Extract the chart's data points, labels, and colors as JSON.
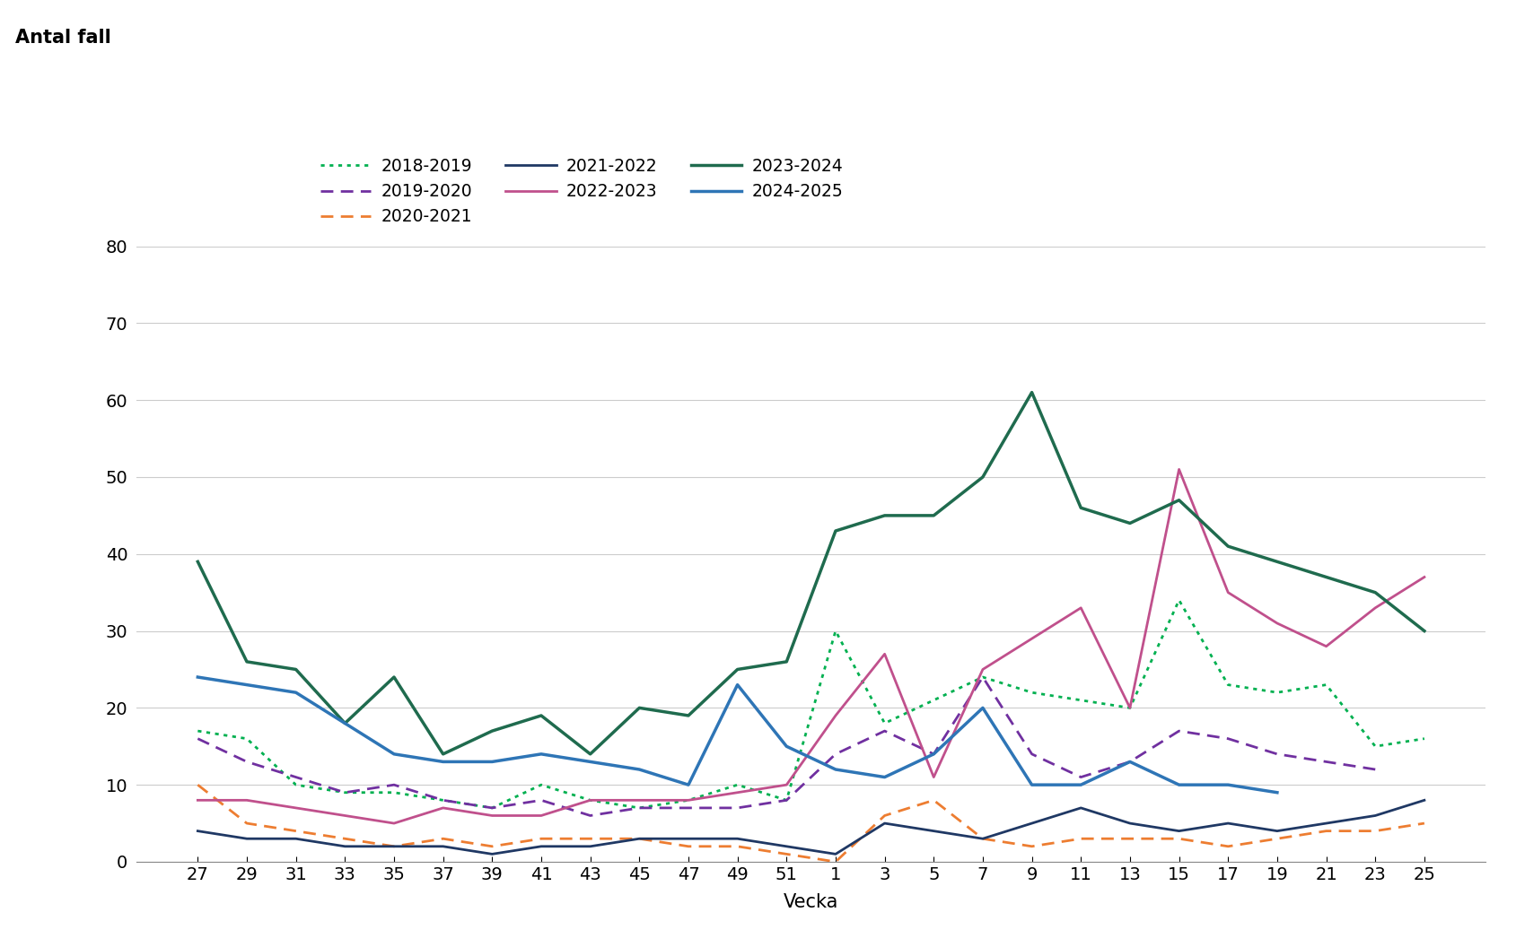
{
  "ylabel": "Antal fall",
  "xlabel": "Vecka",
  "ylim": [
    0,
    80
  ],
  "yticks": [
    0,
    10,
    20,
    30,
    40,
    50,
    60,
    70,
    80
  ],
  "xtick_labels": [
    "27",
    "29",
    "31",
    "33",
    "35",
    "37",
    "39",
    "41",
    "43",
    "45",
    "47",
    "49",
    "51",
    "1",
    "3",
    "5",
    "7",
    "9",
    "11",
    "13",
    "15",
    "17",
    "19",
    "21",
    "23",
    "25"
  ],
  "series": [
    {
      "label": "2018-2019",
      "color": "#00B050",
      "linestyle": "dotted",
      "linewidth": 2.0,
      "data": [
        17,
        16,
        10,
        9,
        9,
        8,
        7,
        10,
        8,
        7,
        8,
        10,
        8,
        30,
        18,
        21,
        24,
        22,
        21,
        20,
        34,
        23,
        22,
        23,
        15,
        16
      ]
    },
    {
      "label": "2019-2020",
      "color": "#7030A0",
      "linestyle": "dashed",
      "linewidth": 2.0,
      "data": [
        16,
        13,
        11,
        9,
        10,
        8,
        7,
        8,
        6,
        7,
        7,
        7,
        8,
        14,
        17,
        14,
        24,
        14,
        11,
        13,
        17,
        16,
        14,
        13,
        12,
        null
      ]
    },
    {
      "label": "2020-2021",
      "color": "#ED7D31",
      "linestyle": "dashed",
      "linewidth": 2.0,
      "data": [
        10,
        5,
        4,
        3,
        2,
        3,
        2,
        3,
        3,
        3,
        2,
        2,
        1,
        0,
        6,
        8,
        3,
        2,
        3,
        3,
        3,
        2,
        3,
        4,
        4,
        5
      ]
    },
    {
      "label": "2021-2022",
      "color": "#1F3864",
      "linestyle": "solid",
      "linewidth": 2.0,
      "data": [
        4,
        3,
        3,
        2,
        2,
        2,
        1,
        2,
        2,
        3,
        3,
        3,
        2,
        1,
        5,
        4,
        3,
        5,
        7,
        5,
        4,
        5,
        4,
        5,
        6,
        8
      ]
    },
    {
      "label": "2022-2023",
      "color": "#C0508C",
      "linestyle": "solid",
      "linewidth": 2.0,
      "data": [
        8,
        8,
        7,
        6,
        5,
        7,
        6,
        6,
        8,
        8,
        8,
        9,
        10,
        19,
        27,
        11,
        25,
        29,
        33,
        20,
        51,
        35,
        31,
        28,
        33,
        37
      ]
    },
    {
      "label": "2023-2024",
      "color": "#1F6B4E",
      "linestyle": "solid",
      "linewidth": 2.5,
      "data": [
        39,
        26,
        25,
        18,
        24,
        14,
        17,
        19,
        14,
        20,
        19,
        25,
        26,
        43,
        45,
        45,
        50,
        61,
        46,
        44,
        47,
        41,
        39,
        37,
        35,
        30
      ]
    },
    {
      "label": "2024-2025",
      "color": "#2E75B6",
      "linestyle": "solid",
      "linewidth": 2.5,
      "data": [
        24,
        23,
        22,
        18,
        14,
        13,
        13,
        14,
        13,
        12,
        10,
        23,
        15,
        12,
        11,
        14,
        20,
        10,
        10,
        13,
        10,
        10,
        9,
        null,
        null,
        null
      ]
    }
  ],
  "background_color": "#FFFFFF",
  "grid_color": "#CCCCCC",
  "label_fontsize": 15,
  "tick_fontsize": 14,
  "legend_fontsize": 13.5
}
